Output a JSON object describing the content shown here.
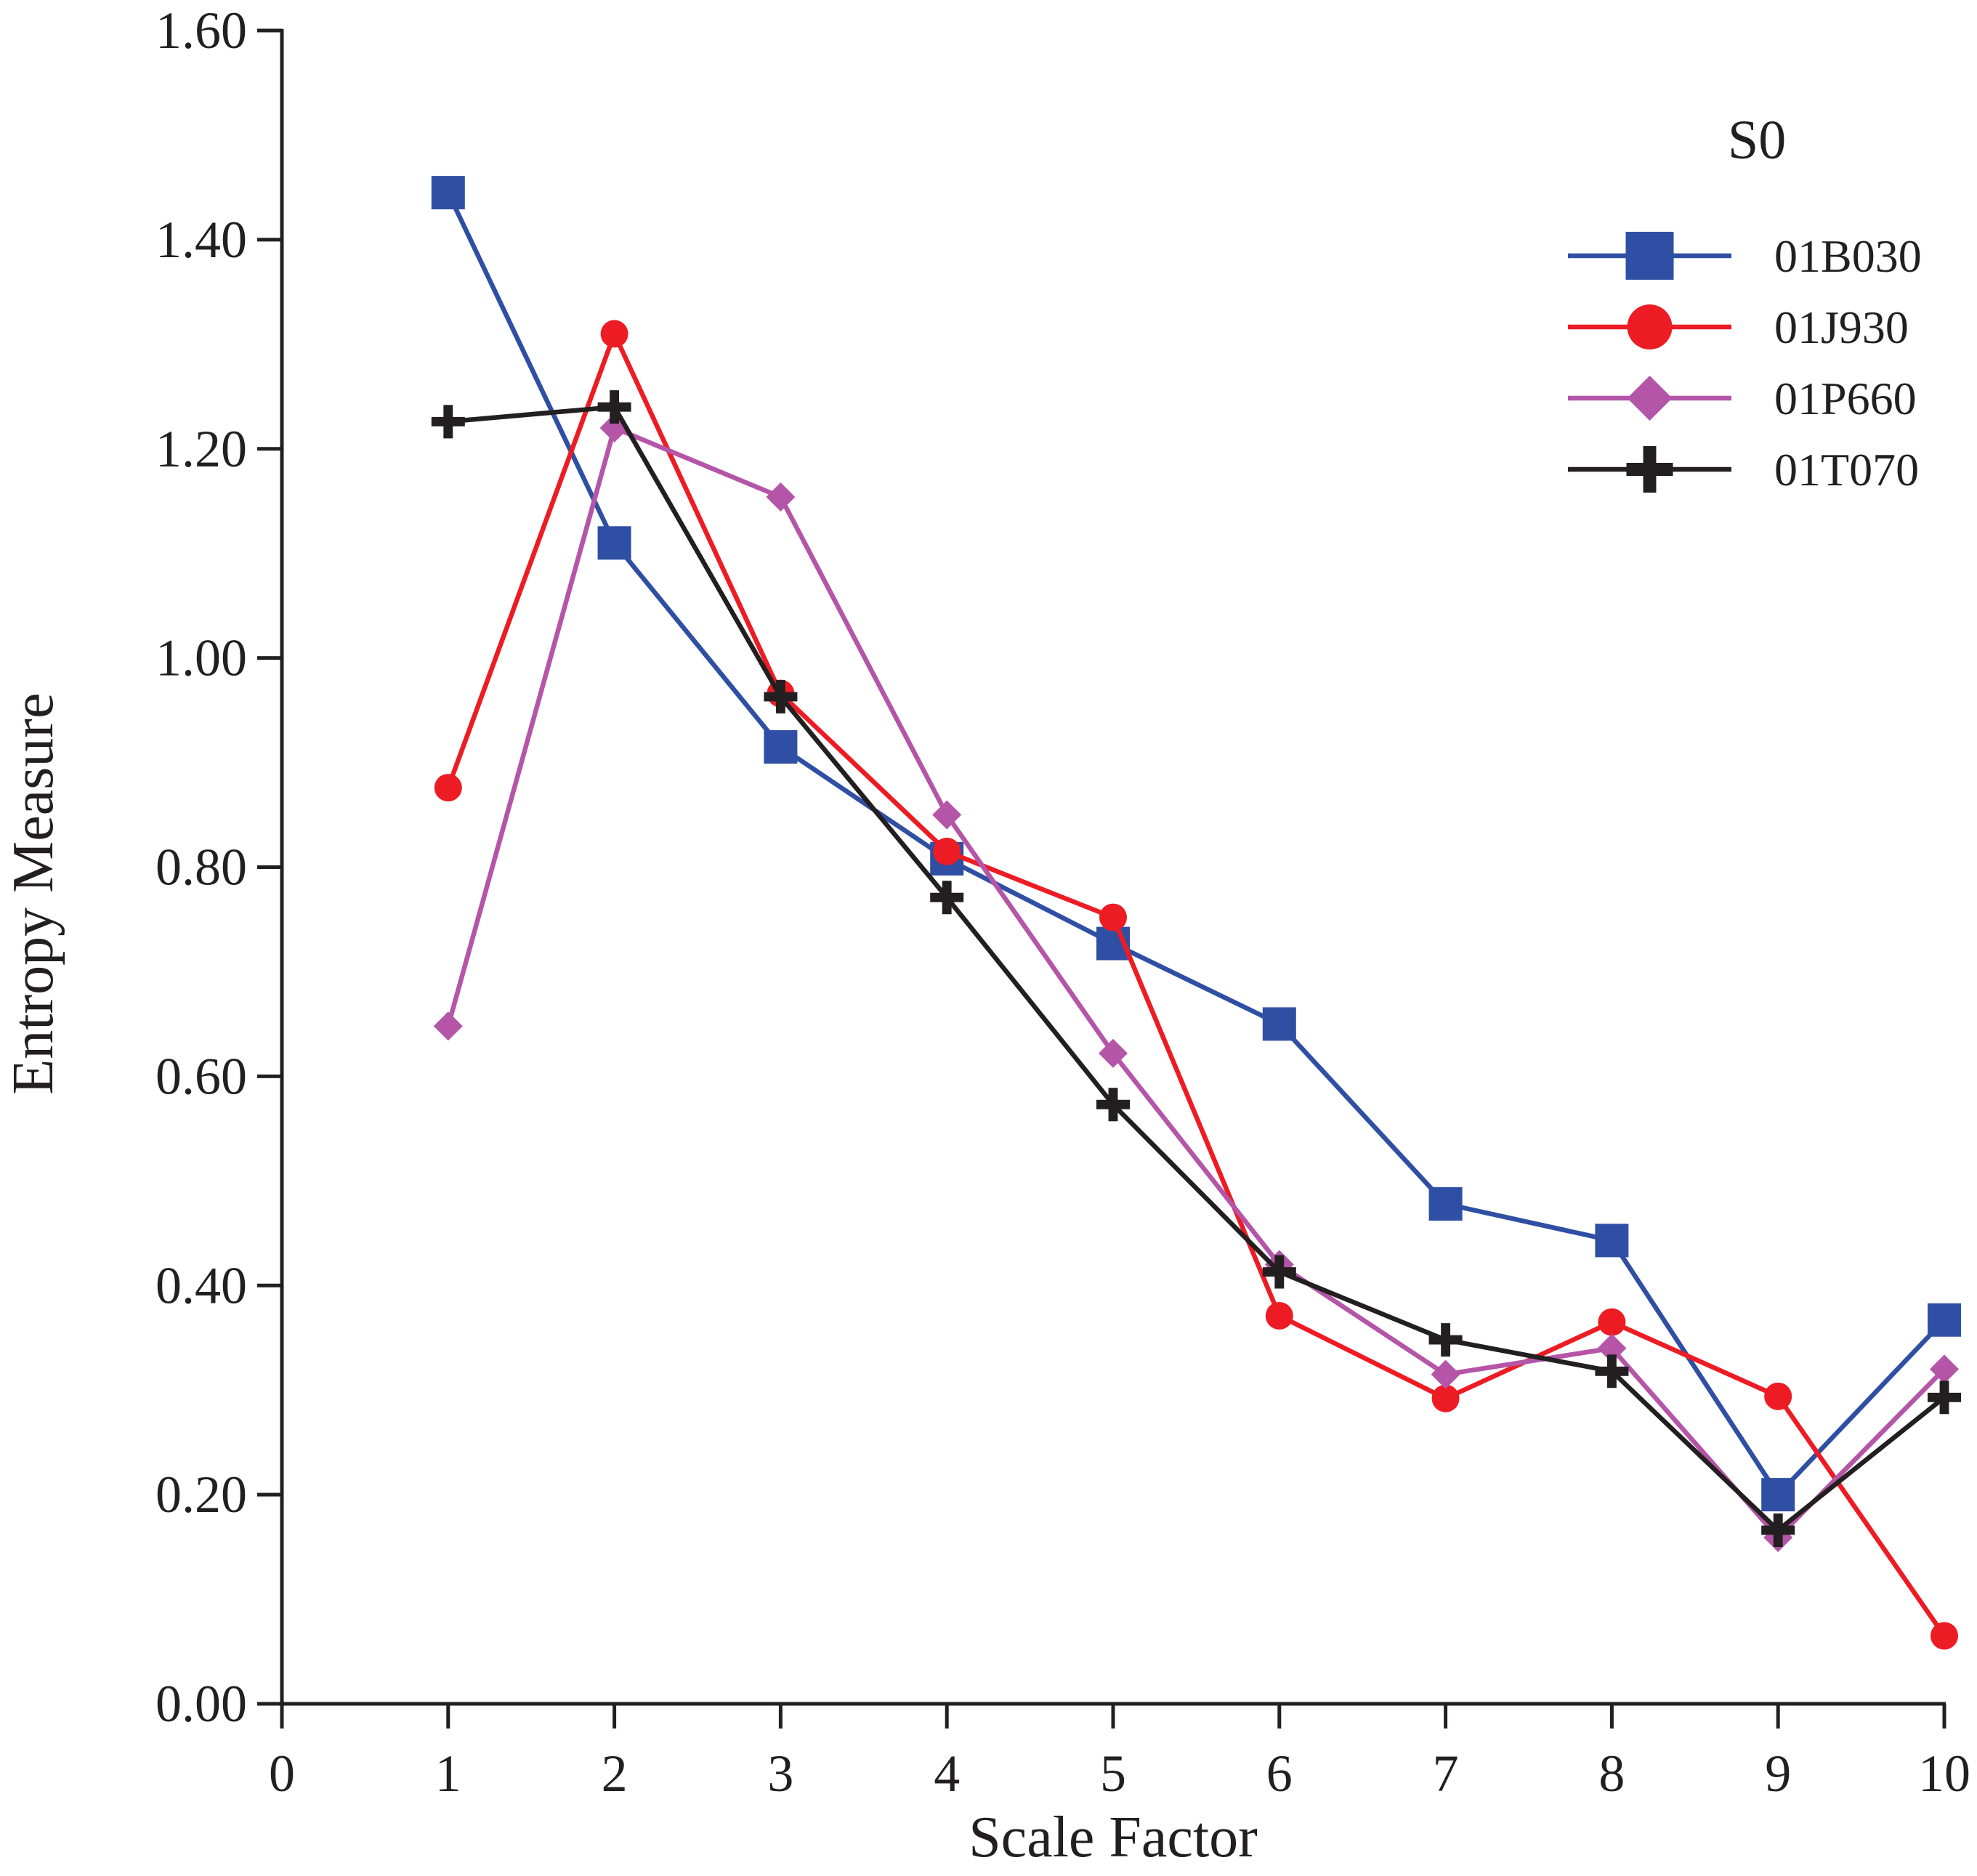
{
  "chart_data": {
    "type": "line",
    "xlabel": "Scale Factor",
    "ylabel": "Entropy Measure",
    "xlim": [
      0,
      10
    ],
    "ylim": [
      0,
      1.6
    ],
    "xticks": [
      "0",
      "1",
      "2",
      "3",
      "4",
      "5",
      "6",
      "7",
      "8",
      "9",
      "10"
    ],
    "yticks": [
      "0.00",
      "0.20",
      "0.40",
      "0.60",
      "0.80",
      "1.00",
      "1.20",
      "1.40",
      "1.60"
    ],
    "grid": false,
    "legend": {
      "title": "S0",
      "position": "top-right"
    },
    "x": [
      1,
      2,
      3,
      4,
      5,
      6,
      7,
      8,
      9,
      10
    ],
    "series": [
      {
        "name": "01B030",
        "color": "#2e4fa3",
        "marker": "square",
        "values": [
          1.445,
          1.11,
          0.915,
          0.808,
          0.727,
          0.65,
          0.478,
          0.443,
          0.2,
          0.367
        ]
      },
      {
        "name": "01J930",
        "color": "#ed1c24",
        "marker": "circle",
        "values": [
          0.876,
          1.31,
          0.966,
          0.815,
          0.752,
          0.371,
          0.292,
          0.365,
          0.294,
          0.065
        ]
      },
      {
        "name": "01P660",
        "color": "#b455a8",
        "marker": "diamond",
        "values": [
          0.648,
          1.22,
          1.154,
          0.85,
          0.622,
          0.42,
          0.315,
          0.34,
          0.159,
          0.32
        ]
      },
      {
        "name": "01T070",
        "color": "#231f20",
        "marker": "plus",
        "values": [
          1.226,
          1.24,
          0.963,
          0.771,
          0.573,
          0.413,
          0.348,
          0.318,
          0.166,
          0.293
        ]
      }
    ]
  }
}
